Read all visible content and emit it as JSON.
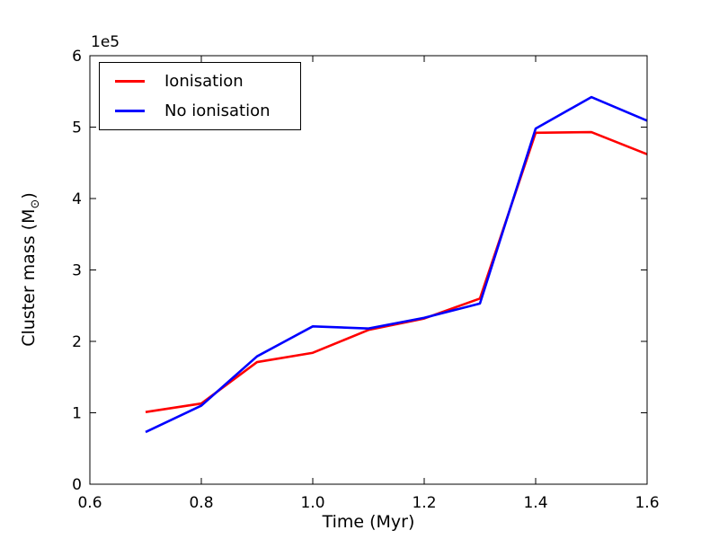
{
  "figure": {
    "background": "#ffffff",
    "axis_color": "#000000"
  },
  "chart_data": {
    "type": "line",
    "title": "",
    "xlabel": "Time (Myr)",
    "ylabel": "Cluster mass (M⊙)",
    "ylabel_parts": {
      "prefix": "Cluster mass (M",
      "sub": "⊙",
      "suffix": ")"
    },
    "y_offset_text": "1e5",
    "xlim": [
      0.6,
      1.6
    ],
    "ylim": [
      0,
      600000
    ],
    "x_ticks": [
      0.6,
      0.8,
      1.0,
      1.2,
      1.4,
      1.6
    ],
    "x_tick_labels": [
      "0.6",
      "0.8",
      "1.0",
      "1.2",
      "1.4",
      "1.6"
    ],
    "y_ticks": [
      0,
      100000,
      200000,
      300000,
      400000,
      500000,
      600000
    ],
    "y_tick_labels": [
      "0",
      "1",
      "2",
      "3",
      "4",
      "5",
      "6"
    ],
    "grid": false,
    "legend_position": "upper left",
    "x": [
      0.7,
      0.8,
      0.9,
      1.0,
      1.1,
      1.2,
      1.3,
      1.4,
      1.5,
      1.6
    ],
    "series": [
      {
        "name": "Ionisation",
        "color": "#ff0000",
        "values": [
          101000,
          113000,
          171000,
          184000,
          216000,
          232000,
          260000,
          492000,
          493000,
          462000
        ]
      },
      {
        "name": "No ionisation",
        "color": "#0000ff",
        "values": [
          73000,
          110000,
          179000,
          221000,
          218000,
          233000,
          253000,
          498000,
          542000,
          509000
        ]
      }
    ]
  }
}
